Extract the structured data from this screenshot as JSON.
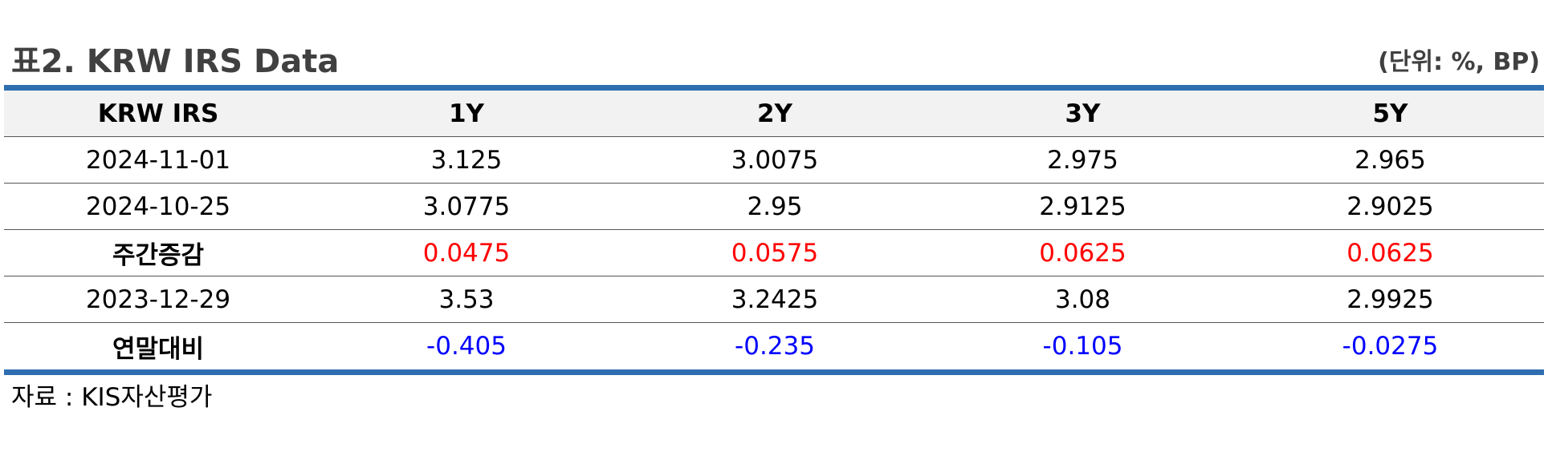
{
  "title": "표2. KRW IRS Data",
  "unit": "(단위: %, BP)",
  "colors": {
    "border_accent": "#2e6eb0",
    "increase": "#ff0000",
    "decrease": "#0000ff",
    "header_bg": "#f2f2f2"
  },
  "table": {
    "headers": [
      "KRW IRS",
      "1Y",
      "2Y",
      "3Y",
      "5Y"
    ],
    "rows": [
      {
        "label": "2024-11-01",
        "values": [
          "3.125",
          "3.0075",
          "2.975",
          "2.965"
        ]
      },
      {
        "label": "2024-10-25",
        "values": [
          "3.0775",
          "2.95",
          "2.9125",
          "2.9025"
        ]
      },
      {
        "label": "주간증감",
        "values": [
          "0.0475",
          "0.0575",
          "0.0625",
          "0.0625"
        ]
      },
      {
        "label": "2023-12-29",
        "values": [
          "3.53",
          "3.2425",
          "3.08",
          "2.9925"
        ]
      },
      {
        "label": "연말대비",
        "values": [
          "-0.405",
          "-0.235",
          "-0.105",
          "-0.0275"
        ]
      }
    ]
  },
  "source": "자료 : KIS자산평가"
}
